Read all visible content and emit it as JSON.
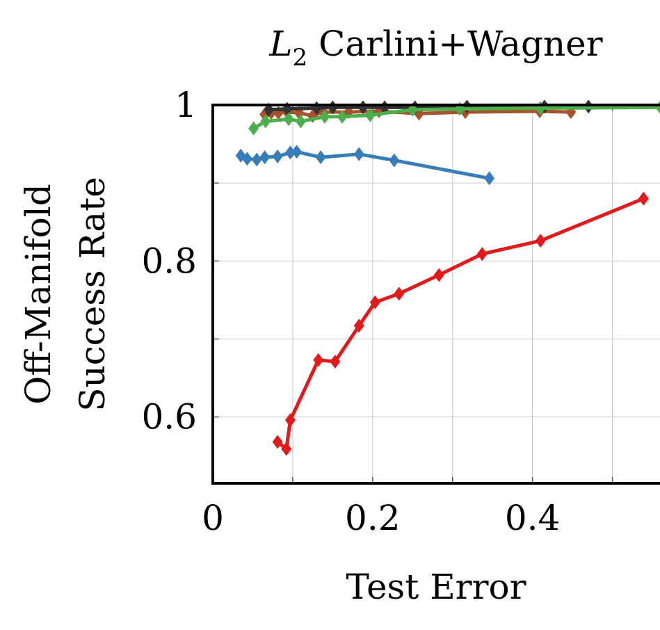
{
  "chart_data": {
    "type": "line",
    "title_prefix": "L",
    "title_subscript": "2",
    "title_suffix": " Carlini+Wagner",
    "xlabel": "Test Error",
    "ylabel_line1": "Off-Manifold",
    "ylabel_line2": "Success Rate",
    "xlim": [
      0,
      0.57
    ],
    "ylim": [
      0.515,
      1.0
    ],
    "xticks": [
      0,
      0.2,
      0.4
    ],
    "xtick_labels": [
      "0",
      "0.2",
      "0.4"
    ],
    "yticks": [
      0.6,
      0.8,
      1.0
    ],
    "ytick_labels": [
      "0.6",
      "0.8",
      "1"
    ],
    "grid_x": [
      0.1,
      0.2,
      0.3,
      0.4,
      0.5
    ],
    "grid_y": [
      0.6,
      0.7,
      0.8,
      0.9
    ],
    "grid": true,
    "series": [
      {
        "color": "#e31a1c",
        "x": [
          0.081,
          0.092,
          0.097,
          0.132,
          0.153,
          0.183,
          0.203,
          0.233,
          0.283,
          0.337,
          0.41,
          0.539
        ],
        "y": [
          0.568,
          0.559,
          0.596,
          0.673,
          0.671,
          0.717,
          0.747,
          0.758,
          0.782,
          0.809,
          0.826,
          0.88
        ]
      },
      {
        "color": "#377eb8",
        "x": [
          0.035,
          0.043,
          0.055,
          0.065,
          0.081,
          0.097,
          0.105,
          0.135,
          0.183,
          0.227,
          0.346
        ],
        "y": [
          0.935,
          0.931,
          0.93,
          0.933,
          0.934,
          0.939,
          0.94,
          0.933,
          0.937,
          0.929,
          0.906
        ]
      },
      {
        "color": "#a6522c",
        "x": [
          0.065,
          0.073,
          0.082,
          0.093,
          0.108,
          0.125,
          0.138,
          0.17,
          0.208,
          0.258,
          0.316,
          0.409,
          0.448
        ],
        "y": [
          0.988,
          0.99,
          0.99,
          0.991,
          0.99,
          0.986,
          0.991,
          0.991,
          0.992,
          0.989,
          0.991,
          0.992,
          0.991
        ]
      },
      {
        "color": "#333333",
        "x": [
          0.07,
          0.093,
          0.13,
          0.15,
          0.188,
          0.215,
          0.253,
          0.318,
          0.415,
          0.47
        ],
        "y": [
          0.994,
          0.995,
          0.996,
          0.997,
          0.997,
          0.997,
          0.997,
          0.998,
          0.998,
          0.998
        ]
      },
      {
        "color": "#4daf4a",
        "x": [
          0.051,
          0.066,
          0.095,
          0.11,
          0.14,
          0.162,
          0.197,
          0.25,
          0.309,
          0.41,
          0.56
        ],
        "y": [
          0.97,
          0.979,
          0.982,
          0.979,
          0.985,
          0.985,
          0.987,
          0.994,
          0.995,
          0.996,
          0.997
        ]
      }
    ]
  }
}
